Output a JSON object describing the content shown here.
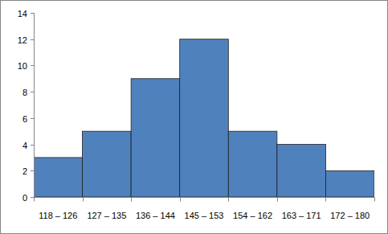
{
  "chart_data": {
    "type": "bar",
    "categories": [
      "118 – 126",
      "127 – 135",
      "136 – 144",
      "145 – 153",
      "154 – 162",
      "163 – 171",
      "172 – 180"
    ],
    "values": [
      3,
      5,
      9,
      12,
      5,
      4,
      2
    ],
    "color": "#4f81bd",
    "ylim": [
      0,
      14
    ],
    "yticks": [
      0,
      2,
      4,
      6,
      8,
      10,
      12,
      14
    ],
    "grid": false
  }
}
